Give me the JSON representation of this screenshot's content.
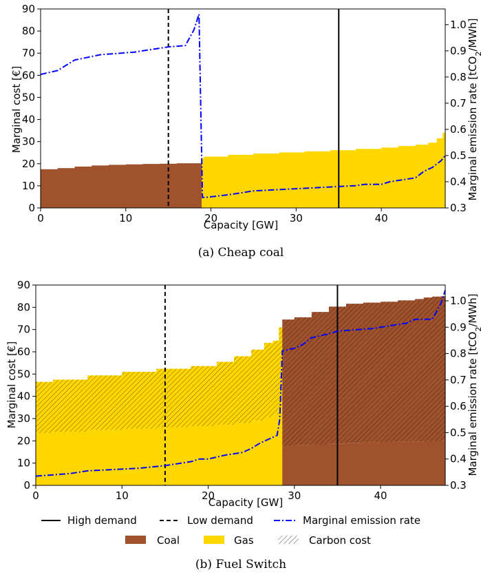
{
  "colors": {
    "coal": "#a0522d",
    "gas": "#ffd700",
    "emission": "#0000ff",
    "demand": "#000000"
  },
  "legend": {
    "high_demand": "High demand",
    "low_demand": "Low demand",
    "emission": "Marginal emission rate",
    "coal": "Coal",
    "gas": "Gas",
    "carbon": "Carbon cost"
  },
  "chart_data": [
    {
      "type": "area",
      "caption": "(a) Cheap coal",
      "xlabel": "Capacity [GW]",
      "ylabel": "Marginal cost [€]",
      "y2label": "Marginal emission rate [tCO₂/MWh]",
      "xlim": [
        0,
        47.5
      ],
      "ylim": [
        0,
        90
      ],
      "y2lim": [
        0.3,
        1.06
      ],
      "xticks": [
        0,
        10,
        20,
        30,
        40
      ],
      "yticks": [
        0,
        10,
        20,
        30,
        40,
        50,
        60,
        70,
        80,
        90
      ],
      "y2ticks": [
        0.3,
        0.4,
        0.5,
        0.6,
        0.7,
        0.8,
        0.9,
        1.0
      ],
      "grid": false,
      "low_demand": 15,
      "high_demand": 35,
      "supply_curve": [
        {
          "fuel": "coal",
          "x": [
            0,
            2,
            4,
            6,
            8,
            10,
            12,
            14,
            16,
            18.9
          ],
          "fuel_cost": [
            17.5,
            18,
            18.7,
            19.2,
            19.5,
            19.7,
            19.9,
            20.0,
            20.2,
            20.3
          ],
          "carbon_cost": [
            0,
            0,
            0,
            0,
            0,
            0,
            0,
            0,
            0,
            0
          ]
        },
        {
          "fuel": "gas",
          "x": [
            18.9,
            19.2,
            22,
            25,
            28,
            31,
            34,
            37,
            40,
            42,
            44,
            45.5,
            46.5,
            47.2,
            47.5
          ],
          "fuel_cost": [
            22.5,
            23.2,
            24,
            24.6,
            25.1,
            25.6,
            26.1,
            26.7,
            27.3,
            28,
            28.6,
            29.5,
            31.5,
            34,
            36
          ],
          "carbon_cost": [
            0,
            0,
            0,
            0,
            0,
            0,
            0,
            0,
            0,
            0,
            0,
            0,
            0,
            0,
            0
          ]
        }
      ],
      "emission_rate": {
        "x": [
          0,
          2,
          3,
          4,
          7,
          9,
          11,
          13,
          14,
          15,
          17,
          18,
          18.6,
          19.0,
          19.3,
          22,
          25,
          28,
          31,
          34,
          37,
          38,
          40,
          41,
          43,
          44,
          45,
          46,
          47,
          47.5
        ],
        "y": [
          0.81,
          0.825,
          0.845,
          0.865,
          0.885,
          0.89,
          0.895,
          0.905,
          0.91,
          0.915,
          0.92,
          0.98,
          1.04,
          0.34,
          0.34,
          0.35,
          0.365,
          0.37,
          0.375,
          0.38,
          0.385,
          0.39,
          0.39,
          0.4,
          0.41,
          0.415,
          0.44,
          0.455,
          0.48,
          0.5
        ]
      }
    },
    {
      "type": "area",
      "caption": "(b) Fuel Switch",
      "xlabel": "Capacity [GW]",
      "ylabel": "Marginal cost [€]",
      "y2label": "Marginal emission rate [tCO₂/MWh]",
      "xlim": [
        0,
        47.5
      ],
      "ylim": [
        0,
        90
      ],
      "y2lim": [
        0.3,
        1.06
      ],
      "xticks": [
        0,
        10,
        20,
        30,
        40
      ],
      "yticks": [
        0,
        10,
        20,
        30,
        40,
        50,
        60,
        70,
        80,
        90
      ],
      "y2ticks": [
        0.3,
        0.4,
        0.5,
        0.6,
        0.7,
        0.8,
        0.9,
        1.0
      ],
      "grid": false,
      "low_demand": 15,
      "high_demand": 35,
      "supply_curve": [
        {
          "fuel": "gas",
          "x": [
            0,
            2,
            6,
            10,
            14,
            18,
            21,
            23,
            25,
            26.5,
            27.5,
            28.2,
            28.6
          ],
          "fuel_cost": [
            23.5,
            24,
            24.8,
            25.4,
            26,
            26.6,
            27.2,
            28,
            29,
            30.5,
            32,
            34.5,
            36
          ],
          "carbon_cost": [
            23,
            23.5,
            24.6,
            25.6,
            26.4,
            27,
            28.3,
            30,
            32,
            33.5,
            33,
            36.5,
            38
          ]
        },
        {
          "fuel": "coal",
          "x": [
            28.6,
            30,
            32,
            34,
            36,
            38,
            40,
            42,
            44,
            45,
            46,
            47,
            47.5
          ],
          "fuel_cost": [
            17.5,
            18,
            18.4,
            18.8,
            19.1,
            19.3,
            19.5,
            19.6,
            19.7,
            19.8,
            19.8,
            20,
            20
          ],
          "carbon_cost": [
            57,
            57.5,
            59.5,
            61.5,
            62.5,
            62.8,
            63,
            63.5,
            64,
            64.6,
            65,
            65,
            70
          ]
        }
      ],
      "emission_rate": {
        "x": [
          0,
          2,
          4,
          6,
          9,
          12,
          15,
          18,
          19,
          20,
          22,
          23,
          24,
          25,
          26,
          27,
          28,
          28.3,
          28.6,
          30,
          31,
          32,
          34,
          35,
          37,
          39,
          41,
          43,
          44,
          46,
          47,
          47.5
        ],
        "y": [
          0.335,
          0.34,
          0.345,
          0.355,
          0.36,
          0.365,
          0.375,
          0.39,
          0.4,
          0.4,
          0.415,
          0.42,
          0.425,
          0.44,
          0.46,
          0.475,
          0.49,
          0.55,
          0.81,
          0.82,
          0.835,
          0.86,
          0.875,
          0.885,
          0.89,
          0.895,
          0.905,
          0.915,
          0.93,
          0.93,
          0.99,
          1.04
        ]
      }
    }
  ]
}
